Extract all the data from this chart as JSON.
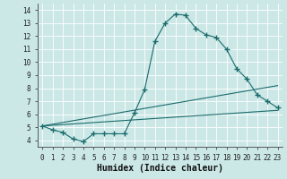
{
  "xlabel": "Humidex (Indice chaleur)",
  "bg_color": "#cbe8e7",
  "grid_color": "#ffffff",
  "line_color": "#1a6b6b",
  "xlim": [
    -0.5,
    23.5
  ],
  "ylim": [
    3.5,
    14.5
  ],
  "xticks": [
    0,
    1,
    2,
    3,
    4,
    5,
    6,
    7,
    8,
    9,
    10,
    11,
    12,
    13,
    14,
    15,
    16,
    17,
    18,
    19,
    20,
    21,
    22,
    23
  ],
  "yticks": [
    4,
    5,
    6,
    7,
    8,
    9,
    10,
    11,
    12,
    13,
    14
  ],
  "line1_x": [
    0,
    1,
    2,
    3,
    4,
    5,
    6,
    7,
    8,
    9,
    10,
    11,
    12,
    13,
    14,
    15,
    16,
    17,
    18,
    19,
    20,
    21,
    22,
    23
  ],
  "line1_y": [
    5.1,
    4.8,
    4.6,
    4.1,
    3.9,
    4.5,
    4.5,
    4.5,
    4.5,
    6.1,
    7.9,
    11.6,
    13.0,
    13.7,
    13.6,
    12.6,
    12.1,
    11.9,
    11.0,
    9.5,
    8.7,
    7.5,
    7.0,
    6.5
  ],
  "line2_x": [
    0,
    23
  ],
  "line2_y": [
    5.1,
    6.3
  ],
  "line3_x": [
    0,
    23
  ],
  "line3_y": [
    5.1,
    8.2
  ],
  "marker_style": "+",
  "marker_size": 4,
  "linewidth": 0.8,
  "tick_fontsize": 5.5,
  "xlabel_fontsize": 7
}
